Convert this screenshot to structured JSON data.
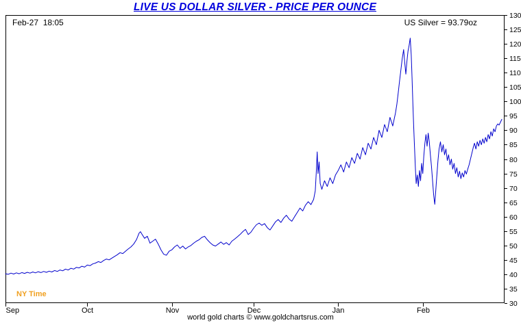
{
  "header": {
    "title": "LIVE US DOLLAR SILVER - PRICE PER OUNCE"
  },
  "overlays": {
    "timestamp": "Feb-27  18:05",
    "quote": "US Silver = 93.79oz",
    "ny_time": "NY Time"
  },
  "footer": {
    "credit": "world gold charts © www.goldchartsrus.com"
  },
  "colors": {
    "title": "#0000dd",
    "line": "#0000cc",
    "axis": "#000000",
    "ny_time": "#f0a020"
  },
  "chart_data": {
    "type": "line",
    "title": "LIVE US DOLLAR SILVER - PRICE PER OUNCE",
    "xlabel": "",
    "ylabel": "",
    "grid": false,
    "legend": "none",
    "x_domain": [
      0,
      183
    ],
    "y_domain": [
      30,
      130
    ],
    "y_ticks": [
      30,
      35,
      40,
      45,
      50,
      55,
      60,
      65,
      70,
      75,
      80,
      85,
      90,
      95,
      100,
      105,
      110,
      115,
      120,
      125,
      130
    ],
    "x_ticks": [
      {
        "pos": 0,
        "label": "Sep"
      },
      {
        "pos": 30,
        "label": "Oct"
      },
      {
        "pos": 61,
        "label": "Nov"
      },
      {
        "pos": 91,
        "label": "Dec"
      },
      {
        "pos": 122,
        "label": "Jan"
      },
      {
        "pos": 153,
        "label": "Feb"
      }
    ],
    "last_value": 93.79,
    "series": [
      {
        "name": "US Silver (USD per ounce)",
        "color": "#0000cc",
        "points": [
          [
            0,
            40.2
          ],
          [
            1,
            40.0
          ],
          [
            2,
            40.4
          ],
          [
            3,
            40.1
          ],
          [
            4,
            40.5
          ],
          [
            5,
            40.2
          ],
          [
            6,
            40.6
          ],
          [
            7,
            40.3
          ],
          [
            8,
            40.7
          ],
          [
            9,
            40.4
          ],
          [
            10,
            40.8
          ],
          [
            11,
            40.5
          ],
          [
            12,
            40.9
          ],
          [
            13,
            40.6
          ],
          [
            14,
            41.0
          ],
          [
            15,
            40.7
          ],
          [
            16,
            41.1
          ],
          [
            17,
            40.8
          ],
          [
            18,
            41.3
          ],
          [
            19,
            41.0
          ],
          [
            20,
            41.5
          ],
          [
            21,
            41.2
          ],
          [
            22,
            41.8
          ],
          [
            23,
            41.5
          ],
          [
            24,
            42.1
          ],
          [
            25,
            41.8
          ],
          [
            26,
            42.4
          ],
          [
            27,
            42.2
          ],
          [
            28,
            42.8
          ],
          [
            29,
            42.5
          ],
          [
            30,
            43.2
          ],
          [
            31,
            43.0
          ],
          [
            32,
            43.6
          ],
          [
            33,
            43.9
          ],
          [
            34,
            44.4
          ],
          [
            35,
            44.1
          ],
          [
            36,
            44.8
          ],
          [
            37,
            45.3
          ],
          [
            38,
            45.0
          ],
          [
            39,
            45.6
          ],
          [
            40,
            46.2
          ],
          [
            41,
            46.8
          ],
          [
            42,
            47.5
          ],
          [
            43,
            47.2
          ],
          [
            44,
            48.0
          ],
          [
            45,
            48.8
          ],
          [
            46,
            49.5
          ],
          [
            47,
            50.5
          ],
          [
            48,
            52.0
          ],
          [
            49,
            54.3
          ],
          [
            49.5,
            54.8
          ],
          [
            50,
            54.0
          ],
          [
            51,
            52.5
          ],
          [
            52,
            53.2
          ],
          [
            53,
            50.8
          ],
          [
            54,
            51.5
          ],
          [
            55,
            52.2
          ],
          [
            56,
            50.5
          ],
          [
            57,
            48.5
          ],
          [
            58,
            47.0
          ],
          [
            59,
            46.6
          ],
          [
            60,
            48.0
          ],
          [
            61,
            48.5
          ],
          [
            62,
            49.5
          ],
          [
            63,
            50.2
          ],
          [
            64,
            49.0
          ],
          [
            65,
            49.8
          ],
          [
            66,
            48.8
          ],
          [
            67,
            49.5
          ],
          [
            68,
            50.0
          ],
          [
            69,
            50.8
          ],
          [
            70,
            51.5
          ],
          [
            71,
            52.0
          ],
          [
            72,
            52.8
          ],
          [
            73,
            53.2
          ],
          [
            74,
            52.0
          ],
          [
            75,
            51.0
          ],
          [
            76,
            50.2
          ],
          [
            77,
            49.8
          ],
          [
            78,
            50.5
          ],
          [
            79,
            51.2
          ],
          [
            80,
            50.4
          ],
          [
            81,
            51.0
          ],
          [
            82,
            50.2
          ],
          [
            83,
            51.5
          ],
          [
            84,
            52.2
          ],
          [
            85,
            53.0
          ],
          [
            86,
            53.8
          ],
          [
            87,
            54.8
          ],
          [
            88,
            55.6
          ],
          [
            89,
            53.8
          ],
          [
            90,
            54.6
          ],
          [
            91,
            56.0
          ],
          [
            92,
            57.2
          ],
          [
            93,
            57.8
          ],
          [
            94,
            57.0
          ],
          [
            95,
            57.6
          ],
          [
            96,
            56.2
          ],
          [
            97,
            55.4
          ],
          [
            98,
            56.8
          ],
          [
            99,
            58.2
          ],
          [
            100,
            59.0
          ],
          [
            101,
            58.0
          ],
          [
            102,
            59.5
          ],
          [
            103,
            60.5
          ],
          [
            104,
            59.2
          ],
          [
            105,
            58.4
          ],
          [
            106,
            60.0
          ],
          [
            107,
            61.5
          ],
          [
            108,
            63.0
          ],
          [
            109,
            62.0
          ],
          [
            110,
            64.0
          ],
          [
            111,
            65.2
          ],
          [
            112,
            64.2
          ],
          [
            113,
            66.0
          ],
          [
            113.6,
            69.0
          ],
          [
            114.0,
            76.0
          ],
          [
            114.3,
            82.5
          ],
          [
            114.6,
            75.0
          ],
          [
            115.0,
            79.0
          ],
          [
            115.4,
            71.5
          ],
          [
            116,
            69.5
          ],
          [
            117,
            72.5
          ],
          [
            118,
            70.5
          ],
          [
            119,
            73.5
          ],
          [
            120,
            71.5
          ],
          [
            121,
            74.5
          ],
          [
            122,
            76.0
          ],
          [
            123,
            78.0
          ],
          [
            124,
            75.5
          ],
          [
            125,
            79.0
          ],
          [
            126,
            77.0
          ],
          [
            127,
            80.5
          ],
          [
            128,
            78.5
          ],
          [
            129,
            82.0
          ],
          [
            130,
            80.0
          ],
          [
            131,
            84.0
          ],
          [
            132,
            81.5
          ],
          [
            133,
            85.5
          ],
          [
            134,
            83.5
          ],
          [
            135,
            87.5
          ],
          [
            136,
            85.0
          ],
          [
            137,
            90.0
          ],
          [
            138,
            87.5
          ],
          [
            139,
            92.0
          ],
          [
            140,
            89.5
          ],
          [
            141,
            94.5
          ],
          [
            142,
            91.5
          ],
          [
            143,
            96.0
          ],
          [
            143.5,
            99.0
          ],
          [
            144,
            103.0
          ],
          [
            144.5,
            107.0
          ],
          [
            145,
            111.0
          ],
          [
            145.5,
            115.0
          ],
          [
            146,
            118.0
          ],
          [
            146.4,
            113.5
          ],
          [
            146.8,
            109.5
          ],
          [
            147.2,
            114.0
          ],
          [
            147.6,
            117.5
          ],
          [
            148,
            119.5
          ],
          [
            148.4,
            122.0
          ],
          [
            148.8,
            116.0
          ],
          [
            149.1,
            108.0
          ],
          [
            149.4,
            99.0
          ],
          [
            149.7,
            91.0
          ],
          [
            150,
            84.0
          ],
          [
            150.3,
            77.0
          ],
          [
            150.6,
            71.5
          ],
          [
            151,
            74.5
          ],
          [
            151.4,
            70.5
          ],
          [
            151.8,
            76.0
          ],
          [
            152.2,
            72.5
          ],
          [
            152.6,
            78.5
          ],
          [
            153,
            75.0
          ],
          [
            153.4,
            81.0
          ],
          [
            153.8,
            85.5
          ],
          [
            154.2,
            88.5
          ],
          [
            154.6,
            84.5
          ],
          [
            155,
            89.0
          ],
          [
            155.4,
            86.0
          ],
          [
            155.8,
            81.5
          ],
          [
            156.2,
            77.5
          ],
          [
            156.6,
            72.5
          ],
          [
            157,
            67.5
          ],
          [
            157.4,
            64.3
          ],
          [
            157.8,
            69.5
          ],
          [
            158.2,
            74.5
          ],
          [
            158.6,
            79.5
          ],
          [
            159,
            83.5
          ],
          [
            159.5,
            86.0
          ],
          [
            160,
            82.5
          ],
          [
            160.5,
            85.0
          ],
          [
            161,
            81.5
          ],
          [
            161.5,
            83.5
          ],
          [
            162,
            79.5
          ],
          [
            162.5,
            81.5
          ],
          [
            163,
            78.0
          ],
          [
            163.5,
            80.0
          ],
          [
            164,
            76.5
          ],
          [
            164.5,
            78.5
          ],
          [
            165,
            75.0
          ],
          [
            165.5,
            77.0
          ],
          [
            166,
            73.8
          ],
          [
            166.5,
            75.8
          ],
          [
            167,
            73.2
          ],
          [
            167.5,
            75.2
          ],
          [
            168,
            73.8
          ],
          [
            168.5,
            76.0
          ],
          [
            169,
            74.8
          ],
          [
            169.5,
            76.5
          ],
          [
            170,
            78.0
          ],
          [
            170.5,
            80.0
          ],
          [
            171,
            82.0
          ],
          [
            171.5,
            84.0
          ],
          [
            172,
            85.5
          ],
          [
            172.5,
            83.5
          ],
          [
            173,
            86.0
          ],
          [
            173.5,
            84.5
          ],
          [
            174,
            86.5
          ],
          [
            174.5,
            85.0
          ],
          [
            175,
            87.0
          ],
          [
            175.5,
            85.5
          ],
          [
            176,
            87.5
          ],
          [
            176.5,
            86.0
          ],
          [
            177,
            88.5
          ],
          [
            177.5,
            87.0
          ],
          [
            178,
            89.5
          ],
          [
            178.5,
            88.0
          ],
          [
            179,
            90.5
          ],
          [
            179.5,
            89.5
          ],
          [
            180,
            91.5
          ],
          [
            180.5,
            92.2
          ],
          [
            181,
            91.8
          ],
          [
            181.5,
            92.8
          ],
          [
            182,
            93.79
          ]
        ]
      }
    ]
  }
}
